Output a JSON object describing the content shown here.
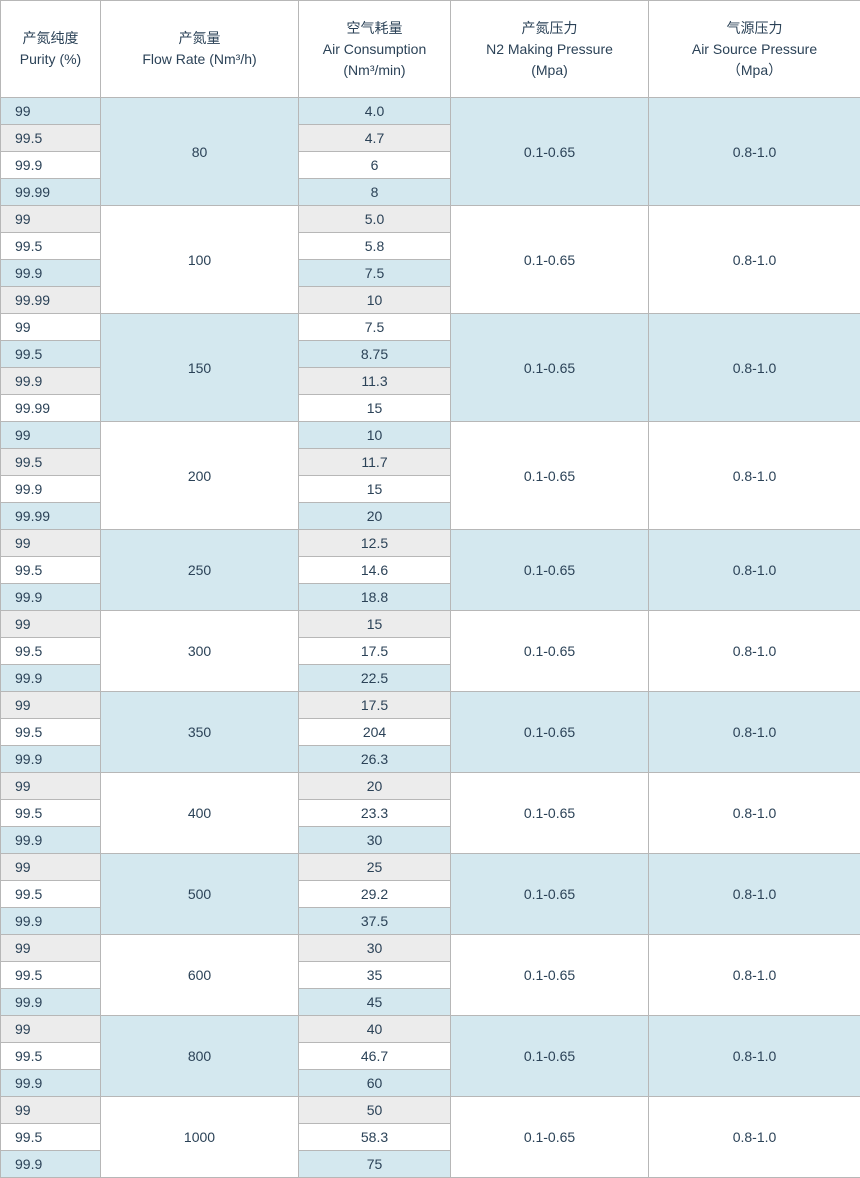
{
  "colors": {
    "blue": "#d4e8ef",
    "grey": "#ececec",
    "white": "#ffffff",
    "border": "#b7b7b7",
    "text": "#2b4257"
  },
  "columns": [
    {
      "cn": "产氮纯度",
      "en": "Purity (%)",
      "class": "col-purity"
    },
    {
      "cn": "产氮量",
      "en": "Flow Rate (Nm³/h)",
      "class": "col-flow"
    },
    {
      "cn": "空气耗量",
      "en": "Air Consumption",
      "unit": "(Nm³/min)",
      "class": "col-air"
    },
    {
      "cn": "产氮压力",
      "en": "N2 Making Pressure",
      "unit": "(Mpa)",
      "class": "col-n2press"
    },
    {
      "cn": "气源压力",
      "en": "Air Source Pressure",
      "unit": "（Mpa）",
      "class": "col-airpress"
    }
  ],
  "n2_pressure": "0.1-0.65",
  "air_pressure": "0.8-1.0",
  "groups": [
    {
      "flow": "80",
      "rows": [
        {
          "p": "99",
          "a": "4.0"
        },
        {
          "p": "99.5",
          "a": "4.7"
        },
        {
          "p": "99.9",
          "a": "6"
        },
        {
          "p": "99.99",
          "a": "8"
        }
      ]
    },
    {
      "flow": "100",
      "rows": [
        {
          "p": "99",
          "a": "5.0"
        },
        {
          "p": "99.5",
          "a": "5.8"
        },
        {
          "p": "99.9",
          "a": "7.5"
        },
        {
          "p": "99.99",
          "a": "10"
        }
      ]
    },
    {
      "flow": "150",
      "rows": [
        {
          "p": "99",
          "a": "7.5"
        },
        {
          "p": "99.5",
          "a": "8.75"
        },
        {
          "p": "99.9",
          "a": "11.3"
        },
        {
          "p": "99.99",
          "a": "15"
        }
      ]
    },
    {
      "flow": "200",
      "rows": [
        {
          "p": "99",
          "a": "10"
        },
        {
          "p": "99.5",
          "a": "11.7"
        },
        {
          "p": "99.9",
          "a": "15"
        },
        {
          "p": "99.99",
          "a": "20"
        }
      ]
    },
    {
      "flow": "250",
      "rows": [
        {
          "p": "99",
          "a": "12.5"
        },
        {
          "p": "99.5",
          "a": "14.6"
        },
        {
          "p": "99.9",
          "a": "18.8"
        }
      ]
    },
    {
      "flow": "300",
      "rows": [
        {
          "p": "99",
          "a": "15"
        },
        {
          "p": "99.5",
          "a": "17.5"
        },
        {
          "p": "99.9",
          "a": "22.5"
        }
      ]
    },
    {
      "flow": "350",
      "rows": [
        {
          "p": "99",
          "a": "17.5"
        },
        {
          "p": "99.5",
          "a": "204"
        },
        {
          "p": "99.9",
          "a": "26.3"
        }
      ]
    },
    {
      "flow": "400",
      "rows": [
        {
          "p": "99",
          "a": "20"
        },
        {
          "p": "99.5",
          "a": "23.3"
        },
        {
          "p": "99.9",
          "a": "30"
        }
      ]
    },
    {
      "flow": "500",
      "rows": [
        {
          "p": "99",
          "a": "25"
        },
        {
          "p": "99.5",
          "a": "29.2"
        },
        {
          "p": "99.9",
          "a": "37.5"
        }
      ]
    },
    {
      "flow": "600",
      "rows": [
        {
          "p": "99",
          "a": "30"
        },
        {
          "p": "99.5",
          "a": "35"
        },
        {
          "p": "99.9",
          "a": "45"
        }
      ]
    },
    {
      "flow": "800",
      "rows": [
        {
          "p": "99",
          "a": "40"
        },
        {
          "p": "99.5",
          "a": "46.7"
        },
        {
          "p": "99.9",
          "a": "60"
        }
      ]
    },
    {
      "flow": "1000",
      "rows": [
        {
          "p": "99",
          "a": "50"
        },
        {
          "p": "99.5",
          "a": "58.3"
        },
        {
          "p": "99.9",
          "a": "75"
        }
      ]
    }
  ]
}
